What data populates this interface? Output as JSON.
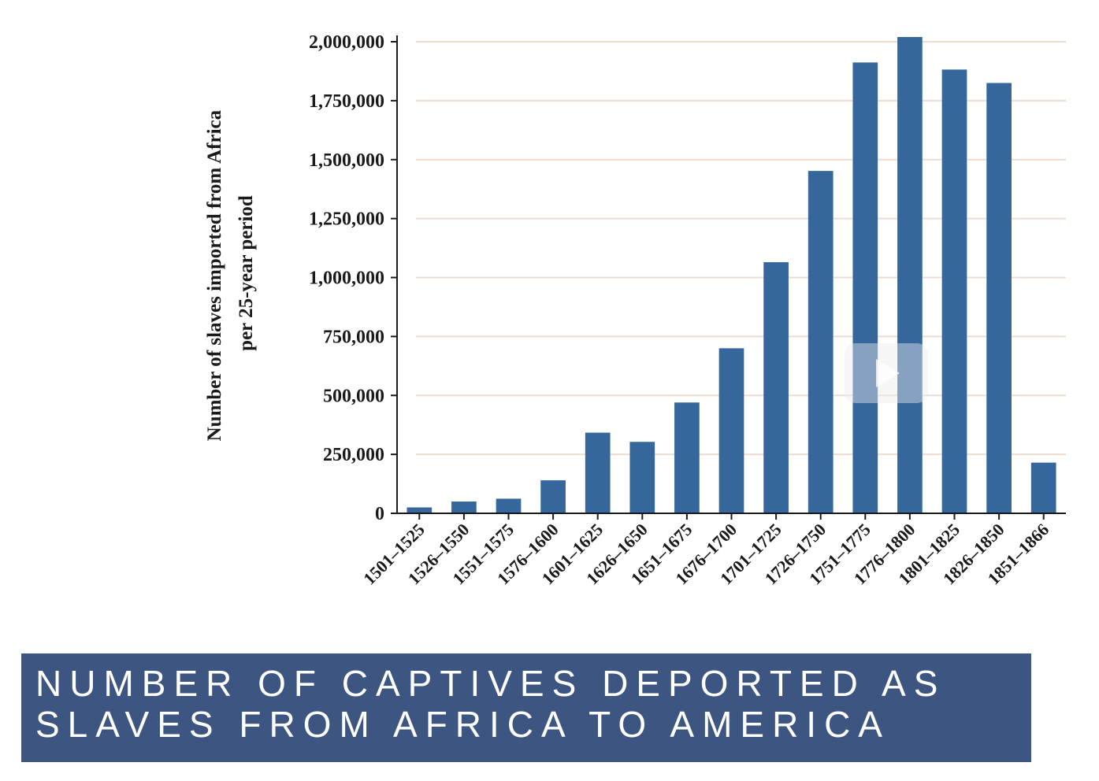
{
  "chart_data": {
    "type": "bar",
    "title": "",
    "ylabel_lines": [
      "Number of slaves imported from Africa",
      "per 25-year period"
    ],
    "xlabel": "",
    "categories": [
      "1501–1525",
      "1526–1550",
      "1551–1575",
      "1576–1600",
      "1601–1625",
      "1626–1650",
      "1651–1675",
      "1676–1700",
      "1701–1725",
      "1726–1750",
      "1751–1775",
      "1776–1800",
      "1801–1825",
      "1826–1850",
      "1851–1866"
    ],
    "values": [
      25000,
      50000,
      62000,
      140000,
      342000,
      303000,
      470000,
      700000,
      1065000,
      1452000,
      1912000,
      2020000,
      1882000,
      1825000,
      215000
    ],
    "ylim": [
      0,
      2000000
    ],
    "yticks": [
      0,
      250000,
      500000,
      750000,
      1000000,
      1250000,
      1500000,
      1750000,
      2000000
    ],
    "ytick_labels": [
      "0",
      "250,000",
      "500,000",
      "750,000",
      "1,000,000",
      "1,250,000",
      "1,500,000",
      "1,750,000",
      "2,000,000"
    ],
    "grid": true,
    "bar_color": "#35679d",
    "grid_color": "#eddcd0"
  },
  "caption": {
    "line1": "NUMBER OF CAPTIVES DEPORTED AS",
    "line2": "SLAVES FROM AFRICA TO AMERICA",
    "background": "#3d5581"
  },
  "overlay": {
    "icon": "play-icon"
  }
}
